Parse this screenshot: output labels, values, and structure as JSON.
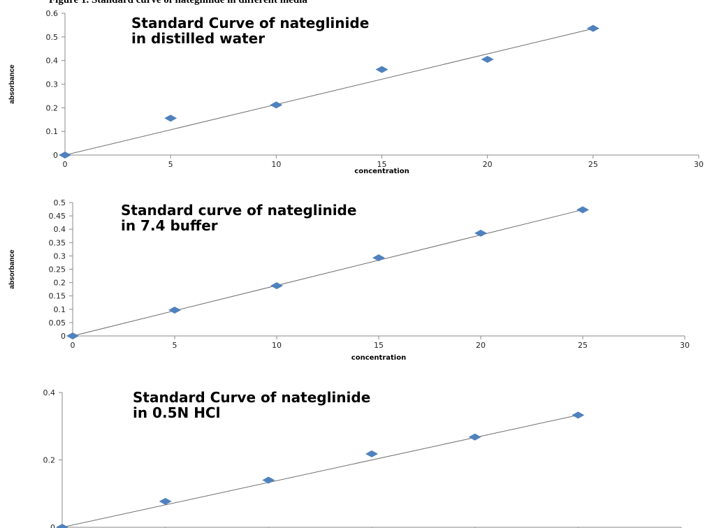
{
  "caption_fragment": "Figure 1. Standard curve of nateglinide in different media",
  "chart_data": [
    {
      "type": "scatter",
      "title": [
        "Standard Curve of nateglinide",
        "in distilled water"
      ],
      "xlabel": "concentration",
      "ylabel": "absorbance",
      "xlim": [
        0,
        30
      ],
      "ylim": [
        0,
        0.6
      ],
      "x_ticks": [
        0,
        5,
        10,
        15,
        20,
        25,
        30
      ],
      "y_ticks": [
        0,
        0.1,
        0.2,
        0.3,
        0.4,
        0.5,
        0.6
      ],
      "x": [
        0,
        5,
        10,
        15,
        20,
        25
      ],
      "y": [
        0,
        0.156,
        0.212,
        0.362,
        0.405,
        0.536
      ],
      "trendline": {
        "x": [
          0,
          25
        ],
        "y": [
          0,
          0.535
        ]
      },
      "marker_color": "#4f81bd",
      "grid": false
    },
    {
      "type": "scatter",
      "title": [
        "Standard curve of nateglinide",
        "in 7.4 buffer"
      ],
      "xlabel": "concentration",
      "ylabel": "absorbance",
      "xlim": [
        0,
        30
      ],
      "ylim": [
        0,
        0.5
      ],
      "x_ticks": [
        0,
        5,
        10,
        15,
        20,
        25,
        30
      ],
      "y_ticks": [
        0,
        0.05,
        0.1,
        0.15,
        0.2,
        0.25,
        0.3,
        0.35,
        0.4,
        0.45,
        0.5
      ],
      "x": [
        0,
        5,
        10,
        15,
        20,
        25
      ],
      "y": [
        0,
        0.097,
        0.188,
        0.293,
        0.385,
        0.473
      ],
      "trendline": {
        "x": [
          0,
          25
        ],
        "y": [
          0,
          0.473
        ]
      },
      "marker_color": "#4f81bd",
      "grid": false
    },
    {
      "type": "scatter",
      "title": [
        "Standard Curve of nateglinide",
        "in 0.5N HCl"
      ],
      "xlabel": "",
      "ylabel": "",
      "xlim": [
        0,
        30
      ],
      "ylim": [
        0,
        0.4
      ],
      "x_ticks": [],
      "y_ticks": [
        0,
        0.2,
        0.4
      ],
      "x": [
        0,
        5,
        10,
        15,
        20,
        25
      ],
      "y": [
        0,
        0.077,
        0.14,
        0.218,
        0.268,
        0.333
      ],
      "trendline": {
        "x": [
          0,
          25
        ],
        "y": [
          0,
          0.333
        ]
      },
      "marker_color": "#4f81bd",
      "grid": false
    }
  ]
}
